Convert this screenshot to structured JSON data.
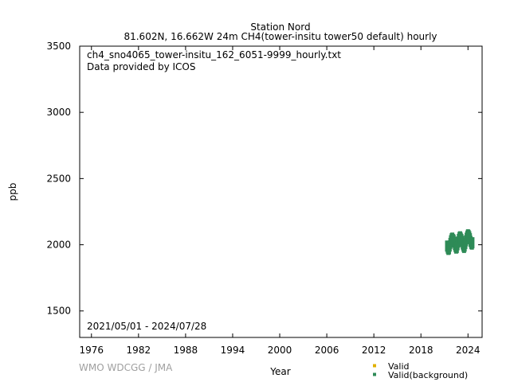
{
  "title": {
    "line1": "Station Nord",
    "line2": "81.602N, 16.662W 24m    CH4(tower-insitu tower50 default) hourly"
  },
  "annotations": {
    "filename": "ch4_sno4065_tower-insitu_162_6051-9999_hourly.txt",
    "provider": "Data provided by ICOS",
    "date_range": "2021/05/01 - 2024/07/28"
  },
  "watermark": "WMO WDCGG / JMA",
  "colors": {
    "valid": "#e0b000",
    "background": "#2e8b57"
  },
  "chart_data": {
    "type": "scatter",
    "xlabel": "Year",
    "ylabel": "ppb",
    "xlim": [
      1974.5,
      2025.8
    ],
    "ylim": [
      1300,
      3500
    ],
    "xticks": [
      1976,
      1982,
      1988,
      1994,
      2000,
      2006,
      2012,
      2018,
      2024
    ],
    "yticks": [
      1500,
      2000,
      2500,
      3000,
      3500
    ],
    "legend_position": "bottom-right",
    "series": [
      {
        "name": "Valid",
        "color": "#e0b000",
        "x": [],
        "y": []
      },
      {
        "name": "Valid(background)",
        "color": "#2e8b57",
        "x": [
          2021.33,
          2021.42,
          2021.5,
          2021.58,
          2021.67,
          2021.75,
          2021.83,
          2021.92,
          2022.0,
          2022.08,
          2022.17,
          2022.25,
          2022.33,
          2022.42,
          2022.5,
          2022.58,
          2022.67,
          2022.75,
          2022.83,
          2022.92,
          2023.0,
          2023.08,
          2023.17,
          2023.25,
          2023.33,
          2023.42,
          2023.5,
          2023.58,
          2023.67,
          2023.75,
          2023.83,
          2023.92,
          2024.0,
          2024.08,
          2024.17,
          2024.25,
          2024.33,
          2024.42,
          2024.5,
          2024.57
        ],
        "y": [
          1990,
          1975,
          1965,
          1970,
          1990,
          2010,
          2030,
          2045,
          2050,
          2040,
          2035,
          2020,
          2000,
          1985,
          1975,
          1980,
          2000,
          2020,
          2040,
          2055,
          2060,
          2050,
          2040,
          2025,
          2005,
          1990,
          1980,
          1990,
          2010,
          2030,
          2050,
          2065,
          2075,
          2070,
          2060,
          2045,
          2025,
          2010,
          2005,
          2015
        ]
      }
    ]
  }
}
